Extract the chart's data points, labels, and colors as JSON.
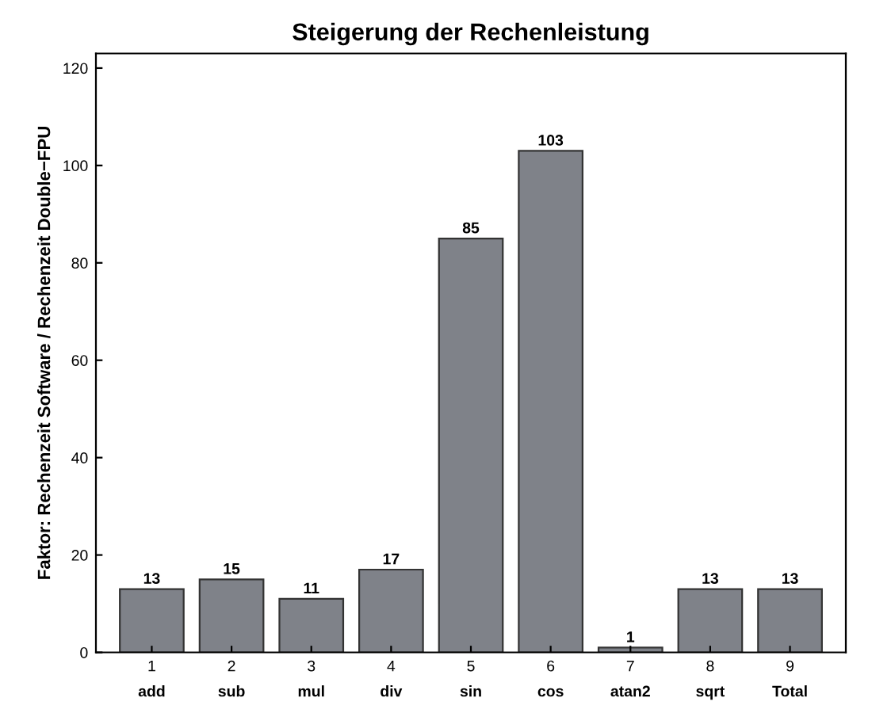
{
  "chart_data": {
    "type": "bar",
    "title": "Steigerung der Rechenleistung",
    "ylabel": "Faktor: Rechenzeit Software / Rechenzeit Double−FPU",
    "x": [
      1,
      2,
      3,
      4,
      5,
      6,
      7,
      8,
      9
    ],
    "values": [
      13,
      15,
      11,
      17,
      85,
      103,
      1,
      13,
      13
    ],
    "color": "#7f8289",
    "data_labels": true,
    "xlim": [
      0.3,
      9.7
    ],
    "xticks": [
      1,
      2,
      3,
      4,
      5,
      6,
      7,
      8,
      9
    ],
    "ylim": [
      0,
      123
    ],
    "yticks": [
      0,
      20,
      40,
      60,
      80,
      100,
      120
    ],
    "grid": false,
    "annotations": [
      "add",
      "sub",
      "mul",
      "div",
      "sin",
      "cos",
      "atan2",
      "sqrt",
      "Total"
    ]
  }
}
